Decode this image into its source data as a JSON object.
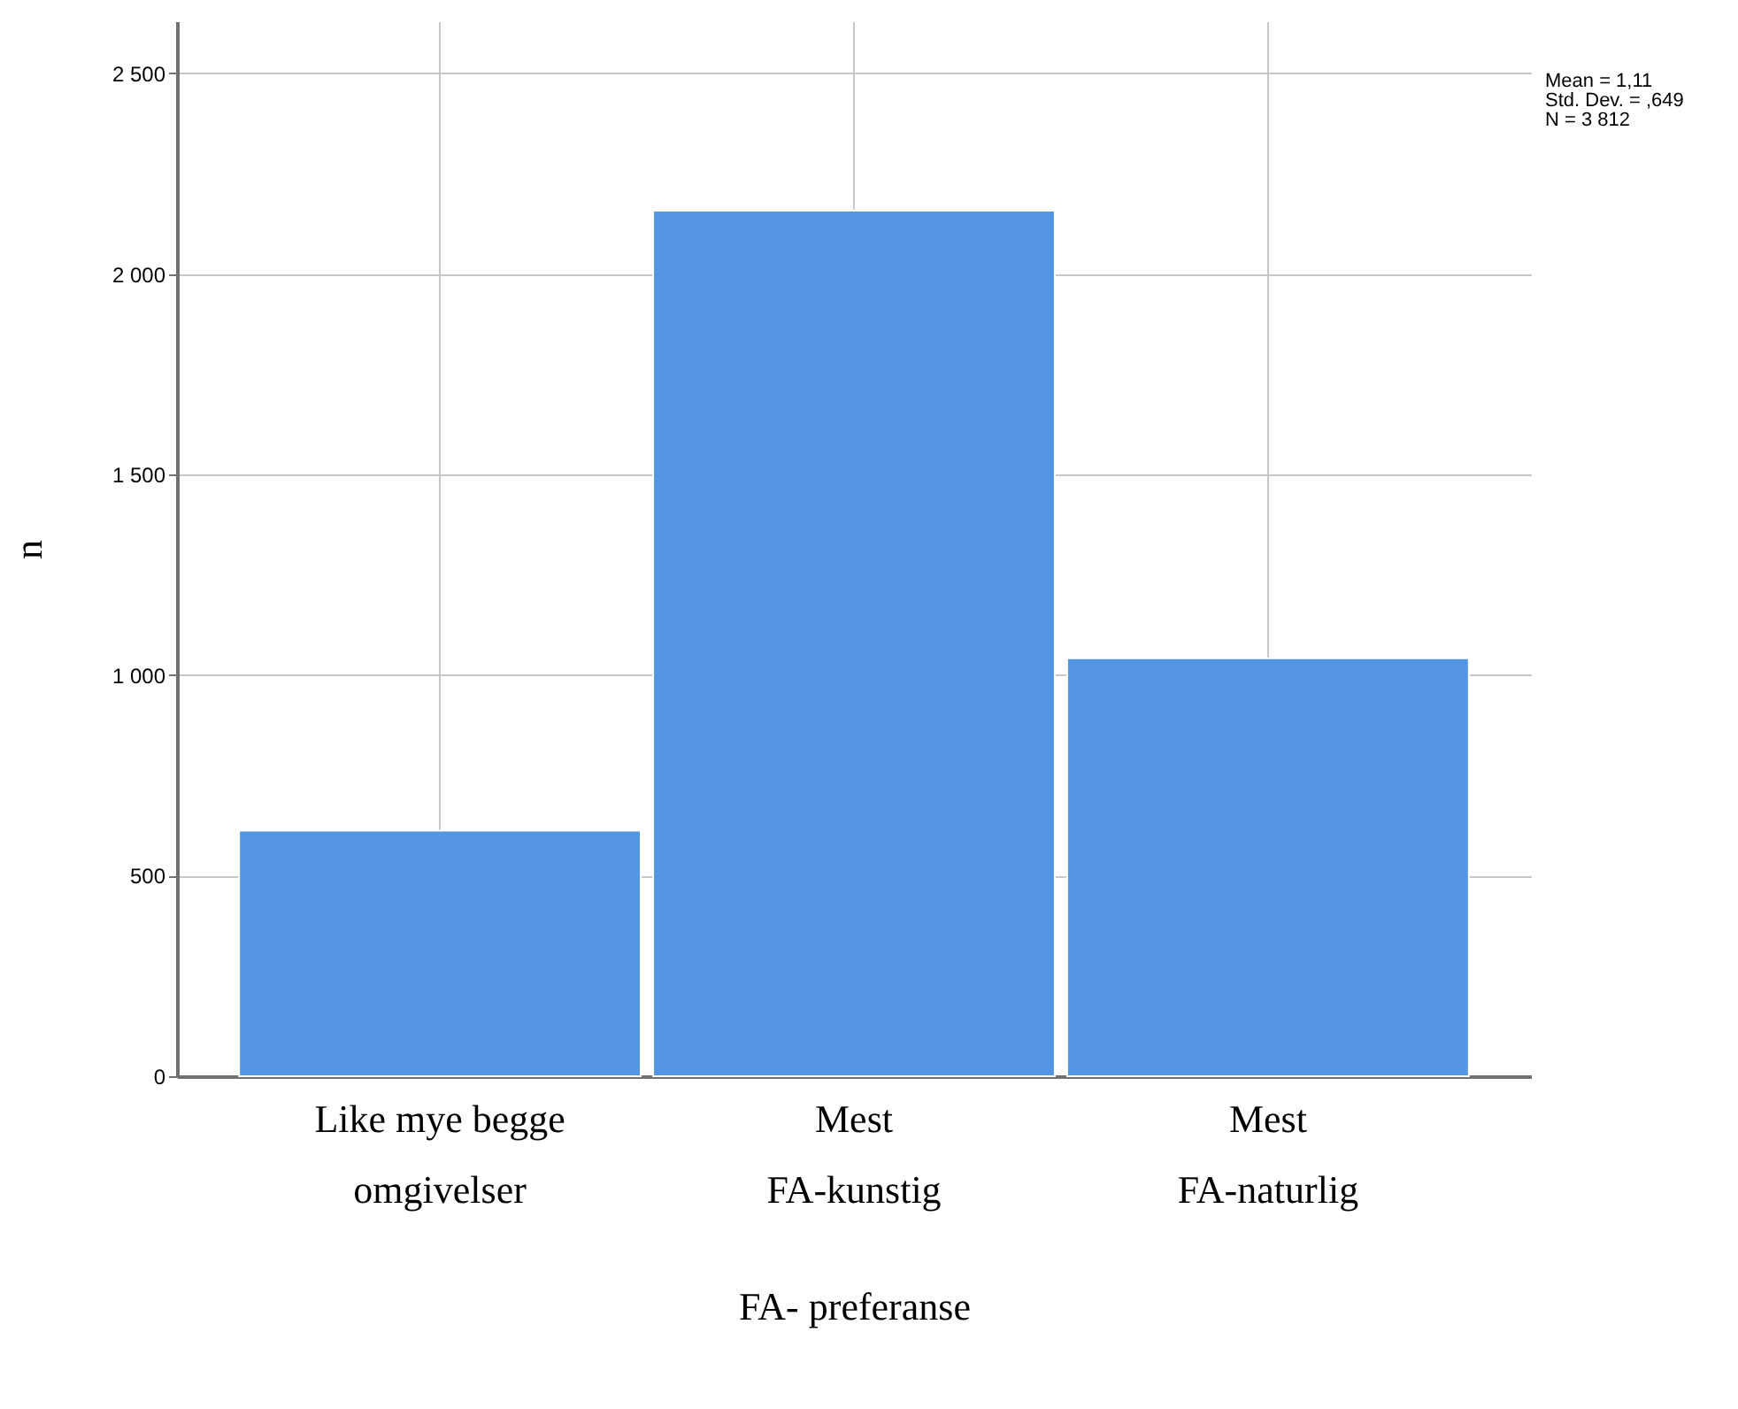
{
  "chart_data": {
    "type": "bar",
    "xlabel": "FA- preferanse",
    "ylabel": "n",
    "categories": [
      "Like mye begge\nomgivelser",
      "Mest\nFA-kunstig",
      "Mest\nFA-naturlig"
    ],
    "values": [
      612,
      2158,
      1042
    ],
    "color": "#5596e3",
    "ylim": [
      0,
      2630
    ],
    "yticks": [
      0,
      500,
      {
        "value": 1000,
        "label": "1 000"
      },
      {
        "value": 1500,
        "label": "1 500"
      },
      {
        "value": 2000,
        "label": "2 000"
      },
      {
        "value": 2500,
        "label": "2 500"
      }
    ],
    "grid": true,
    "annotations": [
      "Mean = 1,11",
      "Std. Dev. = ,649",
      "N = 3 812"
    ]
  }
}
